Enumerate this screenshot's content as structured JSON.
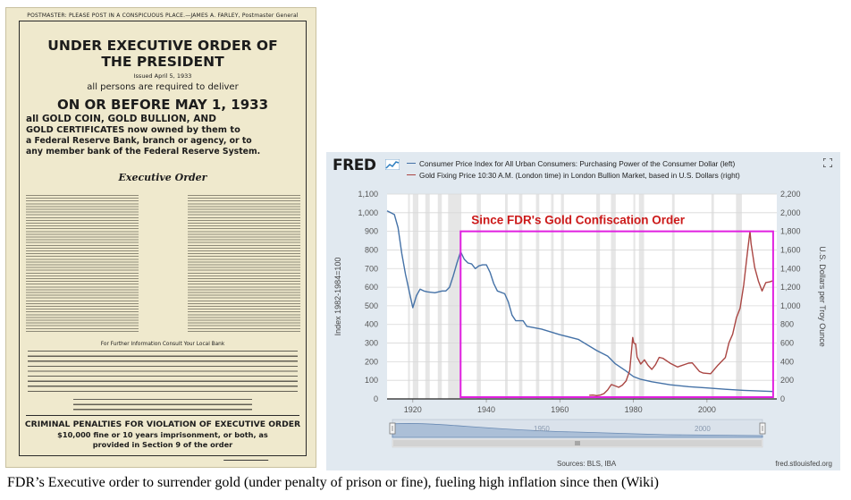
{
  "poster": {
    "postmaster": "POSTMASTER: PLEASE POST IN A CONSPICUOUS PLACE.—JAMES A. FARLEY, Postmaster General",
    "title_line1": "UNDER EXECUTIVE ORDER OF",
    "title_line2": "THE PRESIDENT",
    "issued": "Issued April 5, 1933",
    "persons": "all persons are required to deliver",
    "deadline": "ON OR BEFORE MAY 1, 1933",
    "gold_lines": [
      "all GOLD COIN, GOLD BULLION, AND",
      "GOLD CERTIFICATES now owned by them to",
      "a Federal Reserve Bank, branch or agency, or to",
      "any member bank of the Federal Reserve System."
    ],
    "exec_heading": "Executive Order",
    "further_info": "For Further Information Consult Your Local Bank",
    "penalty_title": "CRIMINAL PENALTIES FOR VIOLATION OF EXECUTIVE ORDER",
    "penalty_line2": "$10,000 fine or 10 years imprisonment, or both, as",
    "penalty_line3": "provided in Section 9 of the order"
  },
  "fred": {
    "logo": "FRED",
    "legend": [
      {
        "label": "Consumer Price Index for All Urban Consumers: Purchasing Power of the Consumer Dollar (left)",
        "color": "#4572a7"
      },
      {
        "label": "Gold Fixing Price 10:30 A.M. (London time) in London Bullion Market, based in U.S. Dollars (right)",
        "color": "#aa4643"
      }
    ],
    "sources": "Sources: BLS, IBA",
    "url": "fred.stlouisfed.org",
    "navigator_labels": [
      "1950",
      "2000"
    ]
  },
  "chart_data": {
    "type": "line",
    "annotation": {
      "text": "Since FDR's Gold Confiscation Order",
      "color": "#cc1a1a",
      "box_color": "#e020e0",
      "x_start": 1933,
      "x_end": 2018
    },
    "x_ticks": [
      1920,
      1940,
      1960,
      1980,
      2000
    ],
    "xlim": [
      1913,
      2019
    ],
    "left_axis": {
      "label": "Index 1982-1984=100",
      "ylim": [
        0,
        1100
      ],
      "ticks": [
        0,
        100,
        200,
        300,
        400,
        500,
        600,
        700,
        800,
        900,
        "1,000",
        "1,100"
      ]
    },
    "right_axis": {
      "label": "U.S. Dollars per Troy Ounce",
      "ylim": [
        0,
        2200
      ],
      "ticks": [
        0,
        200,
        400,
        600,
        800,
        "1,000",
        "1,200",
        "1,400",
        "1,600",
        "1,800",
        "2,000",
        "2,200"
      ]
    },
    "recession_bands": [
      [
        1918.7,
        1919.2
      ],
      [
        1920.0,
        1921.5
      ],
      [
        1923.4,
        1924.6
      ],
      [
        1926.8,
        1927.9
      ],
      [
        1929.6,
        1933.2
      ],
      [
        1937.4,
        1938.5
      ],
      [
        1945.1,
        1945.8
      ],
      [
        1948.9,
        1949.8
      ],
      [
        1953.5,
        1954.4
      ],
      [
        1957.6,
        1958.3
      ],
      [
        1960.3,
        1961.1
      ],
      [
        1969.9,
        1970.9
      ],
      [
        1973.9,
        1975.2
      ],
      [
        1980.0,
        1980.5
      ],
      [
        1981.5,
        1982.9
      ],
      [
        1990.5,
        1991.2
      ],
      [
        2001.2,
        2001.9
      ],
      [
        2007.9,
        2009.5
      ]
    ],
    "series": [
      {
        "name": "Consumer Price Index for All Urban Consumers: Purchasing Power of the Consumer Dollar (left)",
        "axis": "left",
        "x": [
          1913,
          1914,
          1915,
          1916,
          1917,
          1918,
          1919,
          1920,
          1921,
          1922,
          1923,
          1924,
          1926,
          1928,
          1929,
          1930,
          1931,
          1932,
          1933,
          1934,
          1935,
          1936,
          1937,
          1938,
          1939,
          1940,
          1941,
          1942,
          1943,
          1945,
          1946,
          1947,
          1948,
          1950,
          1951,
          1955,
          1960,
          1965,
          1970,
          1973,
          1975,
          1978,
          1980,
          1982,
          1985,
          1990,
          1995,
          2000,
          2005,
          2010,
          2018
        ],
        "y": [
          1010,
          1000,
          990,
          920,
          780,
          670,
          580,
          490,
          555,
          590,
          580,
          575,
          570,
          580,
          580,
          600,
          660,
          730,
          790,
          750,
          730,
          725,
          700,
          715,
          720,
          720,
          680,
          620,
          580,
          565,
          520,
          450,
          420,
          420,
          390,
          375,
          345,
          320,
          260,
          230,
          190,
          150,
          120,
          105,
          92,
          76,
          66,
          59,
          52,
          46,
          40
        ]
      },
      {
        "name": "Gold Fixing Price 10:30 A.M. (London time) in London Bullion Market, based in U.S. Dollars (right)",
        "axis": "right",
        "x": [
          1968,
          1969,
          1970,
          1971,
          1972,
          1973,
          1974,
          1975,
          1976,
          1977,
          1978,
          1979,
          1979.8,
          1980.1,
          1980.6,
          1981,
          1982,
          1983,
          1984,
          1985,
          1986,
          1987,
          1988,
          1990,
          1992,
          1995,
          1996,
          1998,
          1999,
          2001,
          2003,
          2005,
          2006,
          2007,
          2008,
          2009,
          2010,
          2011,
          2011.7,
          2012,
          2013,
          2014,
          2015,
          2016,
          2017,
          2018
        ],
        "y": [
          39,
          41,
          36,
          41,
          58,
          97,
          155,
          140,
          125,
          148,
          193,
          306,
          660,
          600,
          590,
          450,
          375,
          420,
          360,
          317,
          368,
          446,
          437,
          383,
          343,
          384,
          387,
          294,
          278,
          271,
          363,
          444,
          604,
          695,
          871,
          972,
          1224,
          1571,
          1800,
          1669,
          1411,
          1266,
          1160,
          1250,
          1257,
          1270
        ]
      }
    ]
  },
  "caption": "FDR’s Executive order to surrender gold (under penalty of prison or fine), fueling high inflation since then (Wiki)"
}
